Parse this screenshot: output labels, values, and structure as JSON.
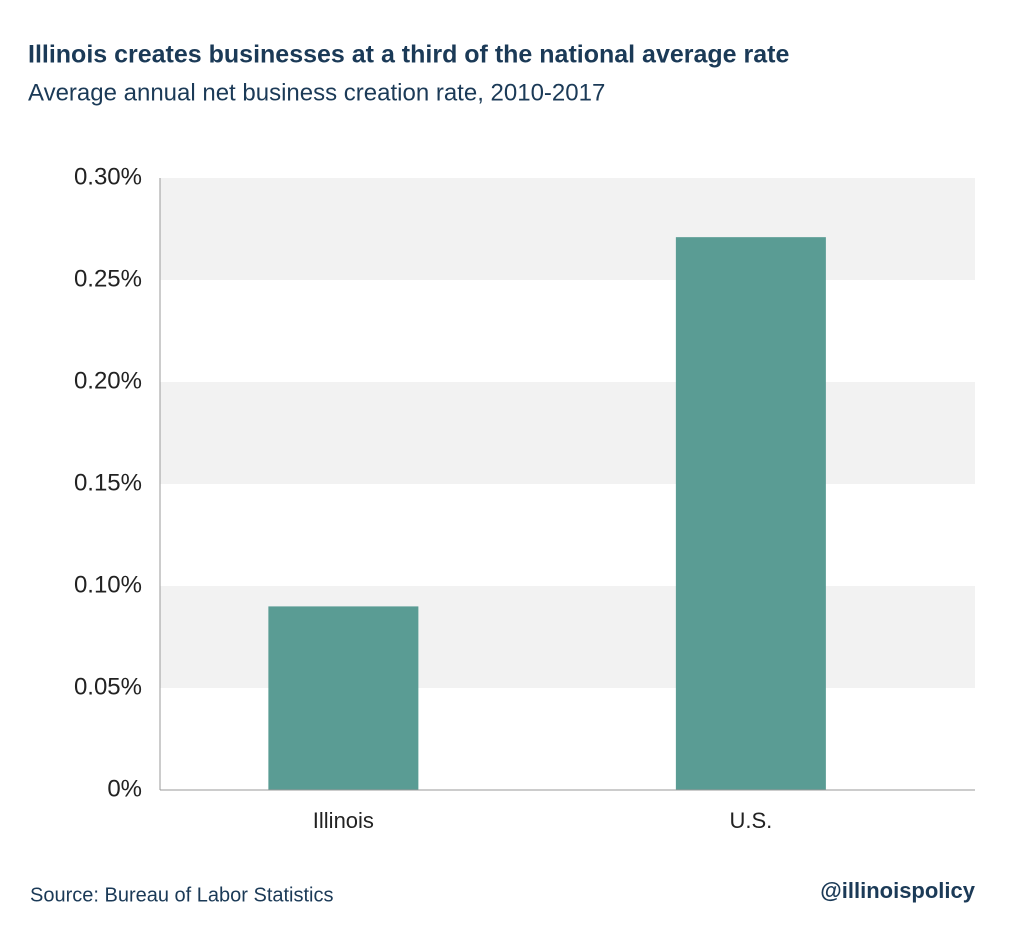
{
  "chart_data": {
    "type": "bar",
    "title": "Illinois creates businesses at a third of the national average rate",
    "subtitle": "Average annual net business creation rate, 2010-2017",
    "categories": [
      "Illinois",
      "U.S."
    ],
    "values": [
      0.09,
      0.271
    ],
    "color": "#5a9c94",
    "ylim": [
      0,
      0.3
    ],
    "yticks": [
      {
        "value": 0,
        "label": "0%"
      },
      {
        "value": 0.05,
        "label": "0.05%"
      },
      {
        "value": 0.1,
        "label": "0.10%"
      },
      {
        "value": 0.15,
        "label": "0.15%"
      },
      {
        "value": 0.2,
        "label": "0.20%"
      },
      {
        "value": 0.25,
        "label": "0.25%"
      },
      {
        "value": 0.3,
        "label": "0.30%"
      }
    ],
    "grid": true,
    "source": "Source:  Bureau of Labor Statistics",
    "credit": "@illinoispolicy"
  }
}
